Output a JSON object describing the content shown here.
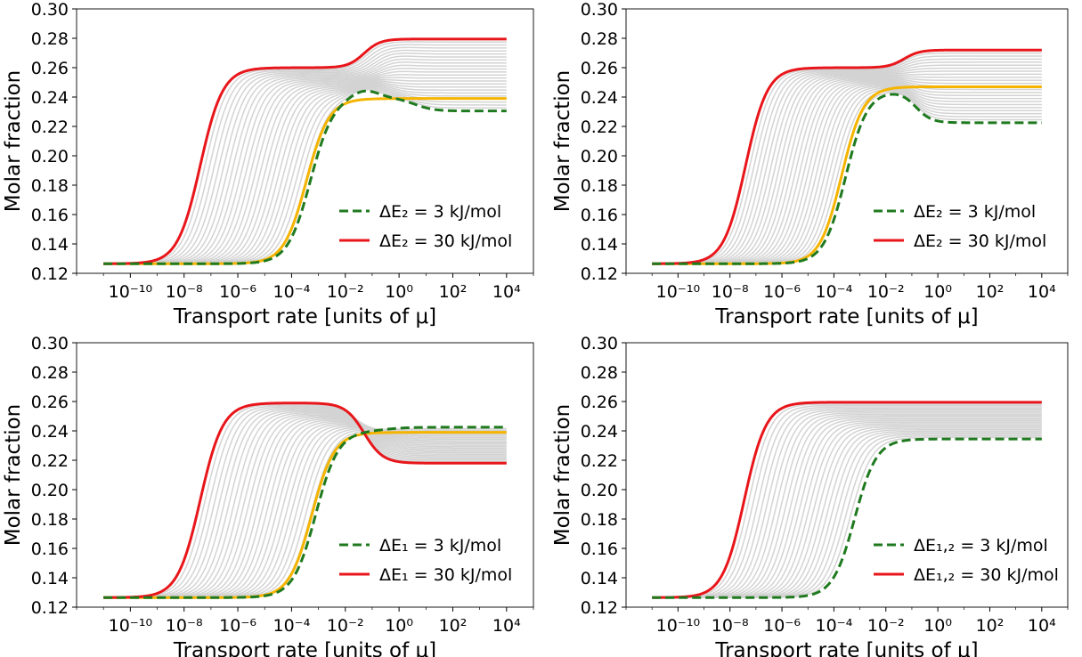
{
  "chart_data": [
    {
      "type": "line",
      "xlabel": "Transport rate [units of μ]",
      "ylabel": "Molar fraction",
      "xscale": "log",
      "xlim": [
        1e-12,
        100000.0
      ],
      "ylim": [
        0.12,
        0.3
      ],
      "xticks": [
        -10,
        -8,
        -6,
        -4,
        -2,
        0,
        2,
        4
      ],
      "yticks": [
        0.12,
        0.14,
        0.16,
        0.18,
        0.2,
        0.22,
        0.24,
        0.26,
        0.28,
        0.3
      ],
      "legend_position": "lower-right",
      "gray_curve_count": 24,
      "series": [
        {
          "name": "ΔE₂ = 3 kJ/mol",
          "color": "#1f7a1f",
          "style": "dashed",
          "params": {
            "low": 0.1265,
            "x1": -3.3,
            "h1": 0.2395,
            "w1": 0.42,
            "x2": 0.6,
            "h2": 0.2305,
            "w2": 0.35,
            "bump": 0.0055,
            "bx": -1.3,
            "bw": 0.75
          }
        },
        {
          "name": "ΔE₂ = 30 kJ/mol",
          "color": "#e8161b",
          "style": "solid",
          "params": {
            "low": 0.1265,
            "x1": -7.4,
            "h1": 0.26,
            "w1": 0.42,
            "x2": -1.3,
            "h2": 0.2795,
            "w2": 0.3,
            "bump": 0,
            "bx": 0,
            "bw": 1
          }
        },
        {
          "name": "",
          "color": "#f5b400",
          "style": "solid",
          "params": {
            "low": 0.1265,
            "x1": -3.45,
            "h1": 0.239,
            "w1": 0.42,
            "x2": 0,
            "h2": 0.239,
            "w2": 1,
            "bump": 0,
            "bx": 0,
            "bw": 1
          }
        }
      ]
    },
    {
      "type": "line",
      "xlabel": "Transport rate [units of μ]",
      "ylabel": "Molar fraction",
      "xscale": "log",
      "xlim": [
        1e-12,
        100000.0
      ],
      "ylim": [
        0.12,
        0.3
      ],
      "xticks": [
        -10,
        -8,
        -6,
        -4,
        -2,
        0,
        2,
        4
      ],
      "yticks": [
        0.12,
        0.14,
        0.16,
        0.18,
        0.2,
        0.22,
        0.24,
        0.26,
        0.28,
        0.3
      ],
      "legend_position": "lower-right",
      "gray_curve_count": 24,
      "series": [
        {
          "name": "ΔE₂ = 3 kJ/mol",
          "color": "#1f7a1f",
          "style": "dashed",
          "params": {
            "low": 0.1265,
            "x1": -3.55,
            "h1": 0.2445,
            "w1": 0.42,
            "x2": -0.85,
            "h2": 0.2225,
            "w2": 0.3,
            "bump": 0,
            "bx": 0,
            "bw": 1
          }
        },
        {
          "name": "ΔE₂ = 30 kJ/mol",
          "color": "#e8161b",
          "style": "solid",
          "params": {
            "low": 0.1265,
            "x1": -7.4,
            "h1": 0.26,
            "w1": 0.42,
            "x2": -1.3,
            "h2": 0.272,
            "w2": 0.3,
            "bump": 0,
            "bx": 0,
            "bw": 1
          }
        },
        {
          "name": "",
          "color": "#f5b400",
          "style": "solid",
          "params": {
            "low": 0.1265,
            "x1": -3.7,
            "h1": 0.247,
            "w1": 0.42,
            "x2": 0,
            "h2": 0.247,
            "w2": 1,
            "bump": 0,
            "bx": 0,
            "bw": 1
          }
        }
      ]
    },
    {
      "type": "line",
      "xlabel": "Transport rate [units of μ]",
      "ylabel": "Molar fraction",
      "xscale": "log",
      "xlim": [
        1e-12,
        100000.0
      ],
      "ylim": [
        0.12,
        0.3
      ],
      "xticks": [
        -10,
        -8,
        -6,
        -4,
        -2,
        0,
        2,
        4
      ],
      "yticks": [
        0.12,
        0.14,
        0.16,
        0.18,
        0.2,
        0.22,
        0.24,
        0.26,
        0.28,
        0.3
      ],
      "legend_position": "lower-right",
      "gray_curve_count": 24,
      "series": [
        {
          "name": "ΔE₁ = 3 kJ/mol",
          "color": "#1f7a1f",
          "style": "dashed",
          "params": {
            "low": 0.1265,
            "x1": -3.1,
            "h1": 0.24,
            "w1": 0.42,
            "x2": -0.5,
            "h2": 0.2425,
            "w2": 0.45,
            "bump": 0,
            "bx": 0,
            "bw": 1
          }
        },
        {
          "name": "ΔE₁ = 30 kJ/mol",
          "color": "#e8161b",
          "style": "solid",
          "params": {
            "low": 0.1265,
            "x1": -7.4,
            "h1": 0.259,
            "w1": 0.42,
            "x2": -1.3,
            "h2": 0.218,
            "w2": 0.35,
            "bump": 0,
            "bx": 0,
            "bw": 1
          }
        },
        {
          "name": "",
          "color": "#f5b400",
          "style": "solid",
          "params": {
            "low": 0.1265,
            "x1": -3.25,
            "h1": 0.239,
            "w1": 0.42,
            "x2": 0,
            "h2": 0.239,
            "w2": 1,
            "bump": 0,
            "bx": 0,
            "bw": 1
          }
        }
      ]
    },
    {
      "type": "line",
      "xlabel": "Transport rate [units of μ]",
      "ylabel": "Molar fraction",
      "xscale": "log",
      "xlim": [
        1e-12,
        100000.0
      ],
      "ylim": [
        0.12,
        0.3
      ],
      "xticks": [
        -10,
        -8,
        -6,
        -4,
        -2,
        0,
        2,
        4
      ],
      "yticks": [
        0.12,
        0.14,
        0.16,
        0.18,
        0.2,
        0.22,
        0.24,
        0.26,
        0.28,
        0.3
      ],
      "legend_position": "lower-right",
      "gray_curve_count": 24,
      "series": [
        {
          "name": "ΔE₁,₂ = 3 kJ/mol",
          "color": "#1f7a1f",
          "style": "dashed",
          "params": {
            "low": 0.1265,
            "x1": -3.2,
            "h1": 0.2345,
            "w1": 0.42,
            "x2": 0,
            "h2": 0.2345,
            "w2": 1,
            "bump": 0,
            "bx": 0,
            "bw": 1
          }
        },
        {
          "name": "ΔE₁,₂ = 30 kJ/mol",
          "color": "#e8161b",
          "style": "solid",
          "params": {
            "low": 0.1265,
            "x1": -7.45,
            "h1": 0.2595,
            "w1": 0.42,
            "x2": 0,
            "h2": 0.2595,
            "w2": 1,
            "bump": 0,
            "bx": 0,
            "bw": 1
          }
        }
      ]
    }
  ]
}
